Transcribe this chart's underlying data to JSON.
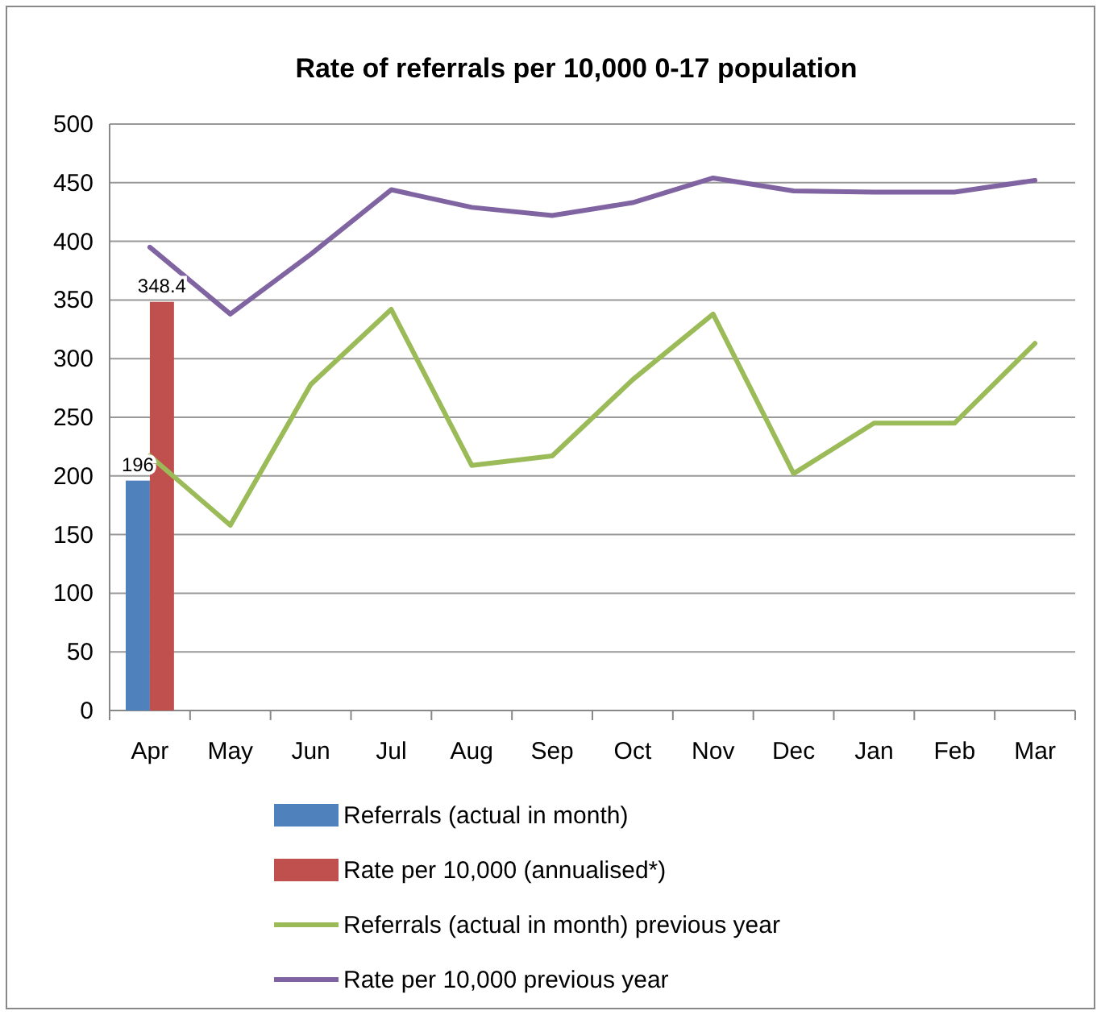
{
  "chart_data": {
    "type": "bar",
    "title": "Rate of referrals per 10,000 0-17 population",
    "categories": [
      "Apr",
      "May",
      "Jun",
      "Jul",
      "Aug",
      "Sep",
      "Oct",
      "Nov",
      "Dec",
      "Jan",
      "Feb",
      "Mar"
    ],
    "series": [
      {
        "name": "Referrals (actual in month)",
        "color": "#4f81bd",
        "values": [
          196,
          null,
          null,
          null,
          null,
          null,
          null,
          null,
          null,
          null,
          null,
          null
        ],
        "value_labels": [
          "196",
          null,
          null,
          null,
          null,
          null,
          null,
          null,
          null,
          null,
          null,
          null
        ]
      },
      {
        "name": "Rate per 10,000 (annualised*)",
        "color": "#c0504d",
        "values": [
          348.4,
          null,
          null,
          null,
          null,
          null,
          null,
          null,
          null,
          null,
          null,
          null
        ],
        "value_labels": [
          "348.4",
          null,
          null,
          null,
          null,
          null,
          null,
          null,
          null,
          null,
          null,
          null
        ]
      },
      {
        "name": "Referrals (actual in month) previous year",
        "color": "#9bbb59",
        "type": "line",
        "values": [
          217,
          158,
          278,
          342,
          209,
          217,
          282,
          338,
          202,
          245,
          245,
          313
        ]
      },
      {
        "name": "Rate per 10,000 previous year",
        "color": "#8064a2",
        "type": "line",
        "values": [
          395,
          338,
          389,
          444,
          429,
          422,
          433,
          454,
          443,
          442,
          442,
          452
        ]
      }
    ],
    "ylim": [
      0,
      500
    ],
    "yticks": [
      0,
      50,
      100,
      150,
      200,
      250,
      300,
      350,
      400,
      450,
      500
    ],
    "grid": "y",
    "legend": "bottom",
    "marker": "none",
    "line_style": "solid"
  }
}
